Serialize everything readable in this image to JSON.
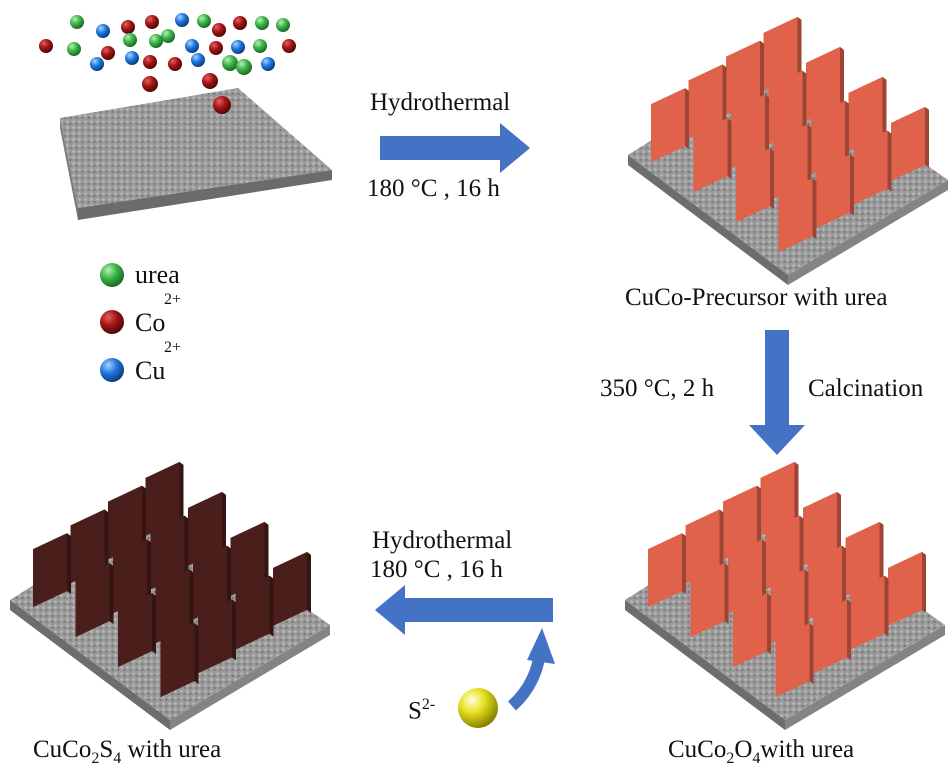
{
  "step1": {
    "line1": "Hydrothermal",
    "line2": "180 °C , 16 h"
  },
  "step2": {
    "temp": "350 °C, 2 h",
    "process": "Calcination"
  },
  "step3": {
    "line1": "Hydrothermal",
    "line2": "180 °C , 16 h"
  },
  "legend": [
    {
      "label": "urea",
      "charge": "",
      "color": "#3cb44b"
    },
    {
      "label": "Co",
      "charge": "2+",
      "color": "#a51414"
    },
    {
      "label": "Cu",
      "charge": "2+",
      "color": "#1e78e0"
    }
  ],
  "captions": {
    "precursor": "CuCo-Precursor with urea",
    "oxide_prefix": "CuCo",
    "oxide_sub1": "2",
    "oxide_mid": "O",
    "oxide_sub2": "4",
    "oxide_suffix": "with urea",
    "sulfide_prefix": "CuCo",
    "sulfide_sub1": "2",
    "sulfide_mid": "S",
    "sulfide_sub2": "4",
    "sulfide_suffix": " with urea"
  },
  "sulfide_ion": {
    "symbol": "S",
    "charge": "2-"
  },
  "colors": {
    "arrow": "#4472c4",
    "oxide_sheet": "#e0624a",
    "sulfide_sheet": "#4a1e1a",
    "substrate": "#9a9a9a",
    "s_ion": "#e8e020"
  }
}
